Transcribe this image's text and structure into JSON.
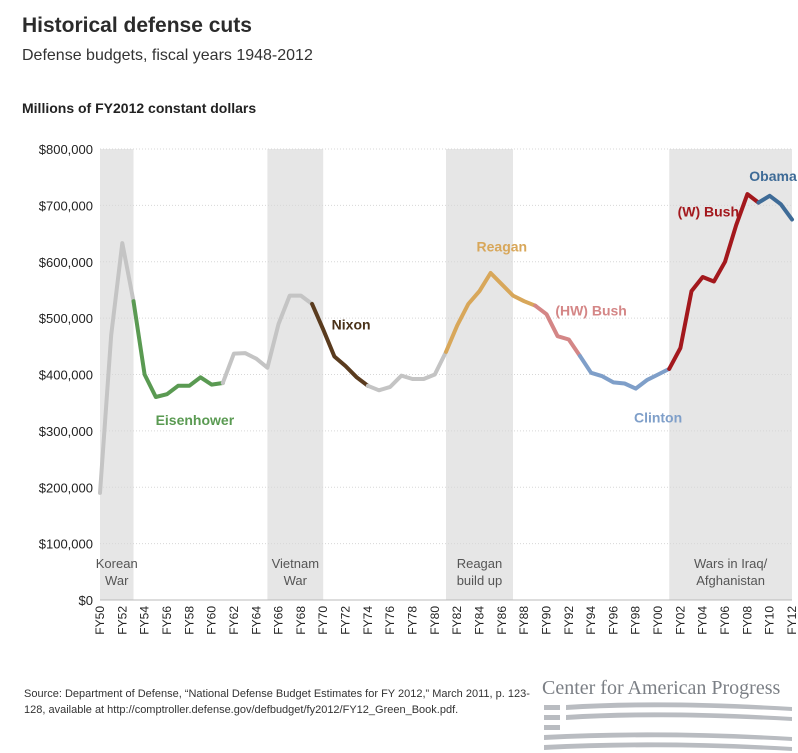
{
  "header": {
    "title": "Historical defense cuts",
    "subtitle": "Defense budgets, fiscal years 1948-2012",
    "units": "Millions of FY2012 constant dollars"
  },
  "footer": {
    "source": "Source: Department of Defense, “National Defense Budget Estimates for FY 2012,” March 2011, p. 123-128, available at http://comptroller.defense.gov/defbudget/fy2012/FY12_Green_Book.pdf.",
    "logo_text": "Center for American Progress"
  },
  "chart_data": {
    "type": "line",
    "title": "Historical defense cuts",
    "subtitle": "Defense budgets, fiscal years 1948-2012",
    "ylabel": "Millions of FY2012 constant dollars",
    "xlabel": "",
    "xlim": [
      1950,
      2012
    ],
    "ylim": [
      0,
      800000
    ],
    "y_ticks": [
      0,
      100000,
      200000,
      300000,
      400000,
      500000,
      600000,
      700000,
      800000
    ],
    "y_tick_labels": [
      "$0",
      "$100,000",
      "$200,000",
      "$300,000",
      "$400,000",
      "$500,000",
      "$600,000",
      "$700,000",
      "$800,000"
    ],
    "x_ticks": [
      1950,
      1952,
      1954,
      1956,
      1958,
      1960,
      1962,
      1964,
      1966,
      1968,
      1970,
      1972,
      1974,
      1976,
      1978,
      1980,
      1982,
      1984,
      1986,
      1988,
      1990,
      1992,
      1994,
      1996,
      1998,
      2000,
      2002,
      2004,
      2006,
      2008,
      2010,
      2012
    ],
    "x_tick_labels": [
      "FY50",
      "FY52",
      "FY54",
      "FY56",
      "FY58",
      "FY60",
      "FY62",
      "FY64",
      "FY66",
      "FY68",
      "FY70",
      "FY72",
      "FY74",
      "FY76",
      "FY78",
      "FY80",
      "FY82",
      "FY84",
      "FY86",
      "FY88",
      "FY90",
      "FY92",
      "FY94",
      "FY96",
      "FY98",
      "FY00",
      "FY02",
      "FY04",
      "FY06",
      "FY08",
      "FY10",
      "FY12"
    ],
    "grid": true,
    "series": [
      {
        "name": "",
        "color": "#c4c4c4",
        "x": [
          1950,
          1951,
          1952,
          1953
        ],
        "values": [
          190000,
          470000,
          633000,
          530000
        ]
      },
      {
        "name": "Eisenhower",
        "color": "#5a9a52",
        "x": [
          1953,
          1954,
          1955,
          1956,
          1957,
          1958,
          1959,
          1960,
          1961
        ],
        "values": [
          530000,
          400000,
          360000,
          365000,
          380000,
          380000,
          395000,
          382000,
          385000
        ]
      },
      {
        "name": "",
        "color": "#c4c4c4",
        "x": [
          1961,
          1962,
          1963,
          1964,
          1965,
          1966,
          1967,
          1968,
          1969
        ],
        "values": [
          385000,
          437000,
          438000,
          428000,
          412000,
          490000,
          540000,
          540000,
          525000
        ]
      },
      {
        "name": "Nixon",
        "color": "#5a3b1e",
        "x": [
          1969,
          1970,
          1971,
          1972,
          1973,
          1974
        ],
        "values": [
          525000,
          480000,
          432000,
          415000,
          395000,
          380000
        ]
      },
      {
        "name": "",
        "color": "#c4c4c4",
        "x": [
          1974,
          1975,
          1976,
          1977,
          1978,
          1979,
          1980,
          1981
        ],
        "values": [
          380000,
          372000,
          378000,
          398000,
          392000,
          392000,
          400000,
          440000
        ]
      },
      {
        "name": "Reagan",
        "color": "#d8a75a",
        "x": [
          1981,
          1982,
          1983,
          1984,
          1985,
          1986,
          1987,
          1988,
          1989
        ],
        "values": [
          440000,
          487000,
          525000,
          548000,
          580000,
          560000,
          540000,
          530000,
          522000
        ]
      },
      {
        "name": "(HW) Bush",
        "color": "#d48686",
        "x": [
          1989,
          1990,
          1991,
          1992,
          1993
        ],
        "values": [
          522000,
          507000,
          468000,
          462000,
          433000
        ]
      },
      {
        "name": "Clinton",
        "color": "#7f9fc9",
        "x": [
          1993,
          1994,
          1995,
          1996,
          1997,
          1998,
          1999,
          2000,
          2001
        ],
        "values": [
          433000,
          403000,
          397000,
          386000,
          384000,
          375000,
          390000,
          400000,
          410000
        ]
      },
      {
        "name": "(W) Bush",
        "color": "#a3181d",
        "x": [
          2001,
          2002,
          2003,
          2004,
          2005,
          2006,
          2007,
          2008,
          2009
        ],
        "values": [
          410000,
          447000,
          548000,
          573000,
          565000,
          600000,
          665000,
          720000,
          705000
        ]
      },
      {
        "name": "Obama",
        "color": "#3e6b97",
        "x": [
          2009,
          2010,
          2011,
          2012
        ],
        "values": [
          705000,
          717000,
          702000,
          675000
        ]
      }
    ],
    "shaded_periods": [
      {
        "label": "Korean War",
        "lines": [
          "Korean",
          "War"
        ],
        "x": [
          1950,
          1953
        ]
      },
      {
        "label": "Vietnam War",
        "lines": [
          "Vietnam",
          "War"
        ],
        "x": [
          1965,
          1970
        ]
      },
      {
        "label": "Reagan build up",
        "lines": [
          "Reagan",
          "build up"
        ],
        "x": [
          1981,
          1987
        ]
      },
      {
        "label": "Wars in Iraq/ Afghanistan",
        "lines": [
          "Wars in Iraq/",
          "Afghanistan"
        ],
        "x": [
          2001,
          2012
        ]
      }
    ],
    "annotations": [
      {
        "text": "Eisenhower",
        "color": "#5a9a52",
        "x": 1958.5,
        "y": 310000
      },
      {
        "text": "Nixon",
        "color": "#4a3219",
        "x": 1972.5,
        "y": 480000
      },
      {
        "text": "Reagan",
        "color": "#d8a75a",
        "x": 1986,
        "y": 618000
      },
      {
        "text": "(HW) Bush",
        "color": "#d48686",
        "x": 1994,
        "y": 505000
      },
      {
        "text": "Clinton",
        "color": "#7f9fc9",
        "x": 2000,
        "y": 315000
      },
      {
        "text": "(W) Bush",
        "color": "#a3181d",
        "x": 2004.5,
        "y": 680000
      },
      {
        "text": "Obama",
        "color": "#3e6b97",
        "x": 2010.3,
        "y": 743000
      }
    ]
  }
}
